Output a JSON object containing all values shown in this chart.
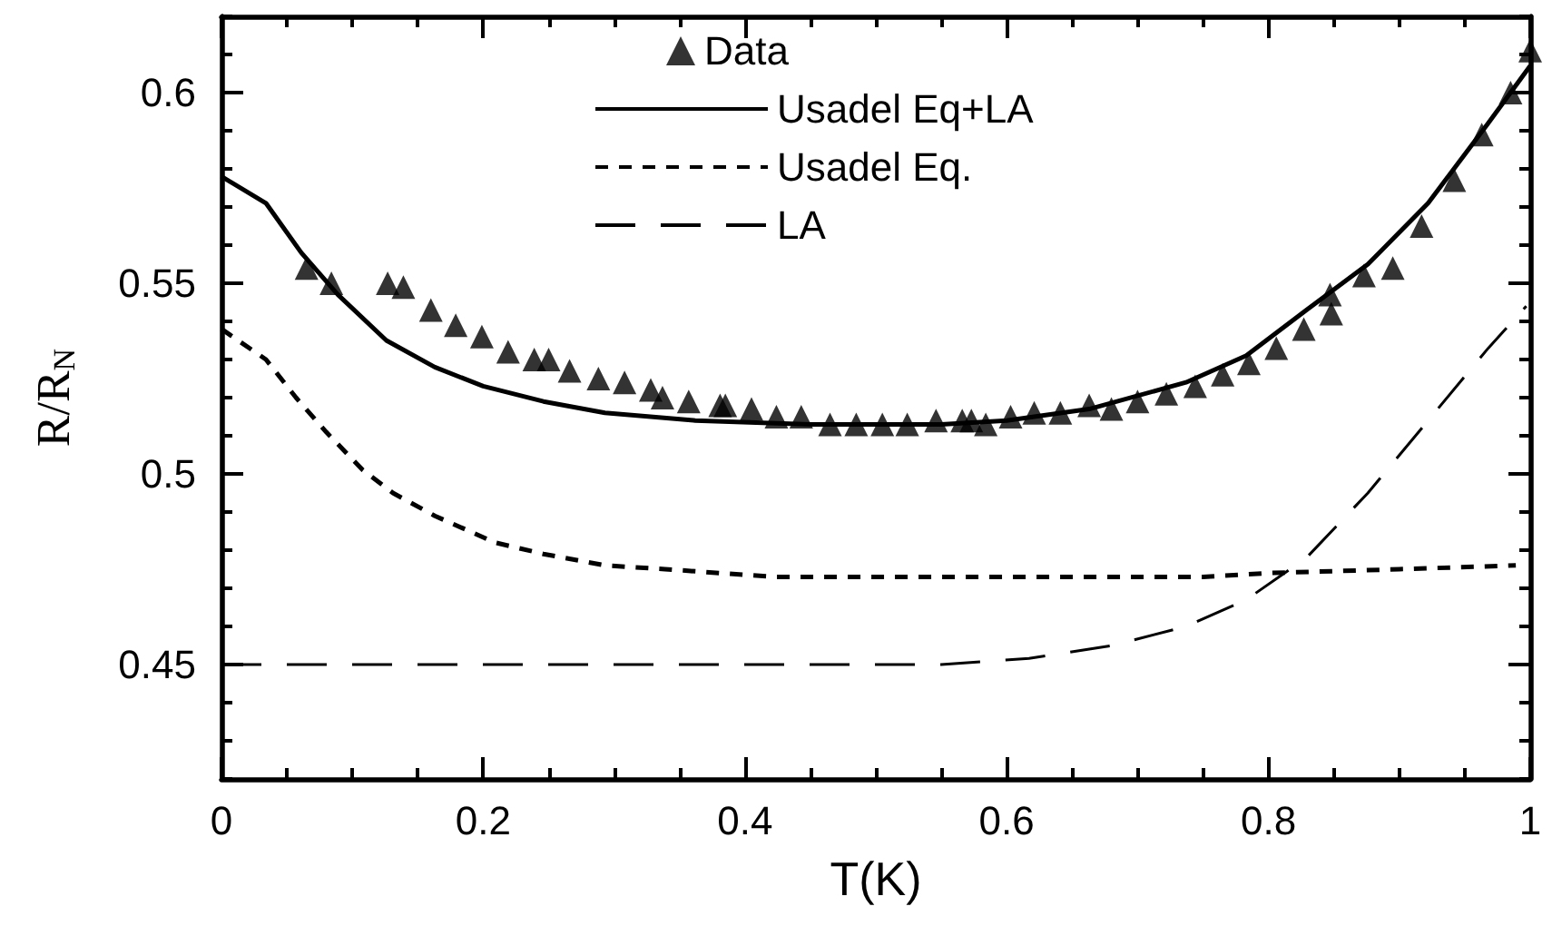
{
  "chart_data": {
    "type": "line",
    "xlabel": "T(K)",
    "ylabel": "R/R$_{N}$",
    "xlim": [
      0,
      1
    ],
    "ylim": [
      0.42,
      0.62
    ],
    "xticks": [
      0,
      {
        "value": 0.05,
        "label": null
      },
      {
        "value": 0.1,
        "label": null
      },
      {
        "value": 0.15,
        "label": null
      },
      0.2,
      {
        "value": 0.25,
        "label": null
      },
      {
        "value": 0.3,
        "label": null
      },
      {
        "value": 0.35,
        "label": null
      },
      0.4,
      {
        "value": 0.45,
        "label": null
      },
      {
        "value": 0.5,
        "label": null
      },
      {
        "value": 0.55,
        "label": null
      },
      0.6,
      {
        "value": 0.65,
        "label": null
      },
      {
        "value": 0.7,
        "label": null
      },
      {
        "value": 0.75,
        "label": null
      },
      0.8,
      {
        "value": 0.85,
        "label": null
      },
      {
        "value": 0.9,
        "label": null
      },
      {
        "value": 0.95,
        "label": null
      },
      1
    ],
    "yticks": [
      {
        "value": 0.42,
        "label": null
      },
      {
        "value": 0.43,
        "label": null
      },
      {
        "value": 0.44,
        "label": null
      },
      0.45,
      {
        "value": 0.46,
        "label": null
      },
      {
        "value": 0.47,
        "label": null
      },
      {
        "value": 0.48,
        "label": null
      },
      {
        "value": 0.49,
        "label": null
      },
      0.5,
      {
        "value": 0.51,
        "label": null
      },
      {
        "value": 0.52,
        "label": null
      },
      {
        "value": 0.53,
        "label": null
      },
      {
        "value": 0.54,
        "label": null
      },
      0.55,
      {
        "value": 0.56,
        "label": null
      },
      {
        "value": 0.57,
        "label": null
      },
      {
        "value": 0.58,
        "label": null
      },
      {
        "value": 0.59,
        "label": null
      },
      0.6,
      {
        "value": 0.61,
        "label": null
      },
      {
        "value": 0.62,
        "label": null
      }
    ],
    "grid": false,
    "legend": "top",
    "series": [
      {
        "name": "Data",
        "type": "scatter",
        "marker": "triangle",
        "color": "#000000",
        "x": [
          0.065,
          0.084,
          0.127,
          0.139,
          0.16,
          0.179,
          0.199,
          0.219,
          0.239,
          0.25,
          0.266,
          0.288,
          0.308,
          0.328,
          0.337,
          0.357,
          0.381,
          0.385,
          0.405,
          0.424,
          0.443,
          0.465,
          0.485,
          0.505,
          0.524,
          0.546,
          0.566,
          0.573,
          0.584,
          0.603,
          0.621,
          0.641,
          0.663,
          0.68,
          0.7,
          0.722,
          0.744,
          0.765,
          0.785,
          0.806,
          0.827,
          0.847,
          0.848,
          0.873,
          0.895,
          0.917,
          0.942,
          0.963,
          0.985,
          1.0
        ],
        "values": [
          0.554,
          0.55,
          0.55,
          0.549,
          0.543,
          0.539,
          0.536,
          0.532,
          0.53,
          0.53,
          0.527,
          0.525,
          0.524,
          0.522,
          0.52,
          0.519,
          0.518,
          0.518,
          0.517,
          0.515,
          0.515,
          0.513,
          0.513,
          0.513,
          0.513,
          0.514,
          0.514,
          0.514,
          0.513,
          0.515,
          0.516,
          0.516,
          0.518,
          0.517,
          0.519,
          0.521,
          0.523,
          0.526,
          0.529,
          0.533,
          0.538,
          0.547,
          0.542,
          0.552,
          0.554,
          0.565,
          0.577,
          0.589,
          0.6,
          0.611
        ]
      },
      {
        "name": "Usadel Eq+LA",
        "type": "line",
        "marker": "none",
        "line_style": "solid",
        "color": "#000000",
        "x": [
          0,
          0.034,
          0.061,
          0.089,
          0.126,
          0.163,
          0.2,
          0.246,
          0.293,
          0.362,
          0.45,
          0.55,
          0.6,
          0.663,
          0.737,
          0.783,
          0.829,
          0.876,
          0.922,
          0.968,
          1.0
        ],
        "values": [
          0.578,
          0.571,
          0.558,
          0.547,
          0.535,
          0.528,
          0.523,
          0.519,
          0.516,
          0.514,
          0.513,
          0.513,
          0.514,
          0.517,
          0.524,
          0.531,
          0.543,
          0.555,
          0.571,
          0.592,
          0.607
        ]
      },
      {
        "name": "Usadel Eq.",
        "type": "line",
        "marker": "none",
        "line_style": "dashed",
        "color": "#000000",
        "x": [
          0,
          0.034,
          0.057,
          0.08,
          0.108,
          0.131,
          0.163,
          0.209,
          0.246,
          0.293,
          0.339,
          0.422,
          0.5,
          0.6,
          0.75,
          0.8,
          0.9,
          0.989
        ],
        "values": [
          0.538,
          0.53,
          0.52,
          0.511,
          0.501,
          0.495,
          0.489,
          0.482,
          0.479,
          0.476,
          0.475,
          0.473,
          0.473,
          0.473,
          0.473,
          0.474,
          0.475,
          0.476
        ]
      },
      {
        "name": "LA",
        "type": "line",
        "marker": "none",
        "line_style": "long-dashed",
        "color": "#000000",
        "x": [
          0,
          0.3,
          0.55,
          0.617,
          0.681,
          0.737,
          0.783,
          0.829,
          0.876,
          0.922,
          0.968,
          0.997
        ],
        "values": [
          0.45,
          0.45,
          0.45,
          0.4516,
          0.455,
          0.46,
          0.467,
          0.478,
          0.495,
          0.514,
          0.533,
          0.544
        ]
      }
    ]
  }
}
